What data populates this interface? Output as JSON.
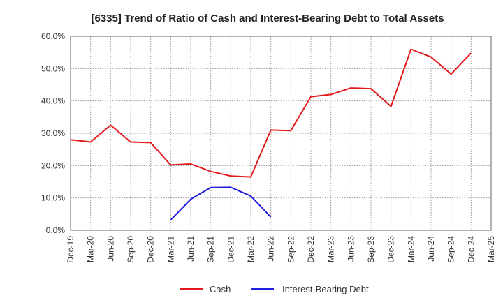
{
  "chart_data": {
    "type": "line",
    "title": "[6335]  Trend of Ratio of Cash and Interest-Bearing Debt to Total Assets",
    "xlabel": "",
    "ylabel": "",
    "ylim": [
      0,
      60
    ],
    "yticks": [
      0,
      10,
      20,
      30,
      40,
      50,
      60
    ],
    "ytick_labels": [
      "0.0%",
      "10.0%",
      "20.0%",
      "30.0%",
      "40.0%",
      "50.0%",
      "60.0%"
    ],
    "categories": [
      "Dec-19",
      "Mar-20",
      "Jun-20",
      "Sep-20",
      "Dec-20",
      "Mar-21",
      "Jun-21",
      "Sep-21",
      "Dec-21",
      "Mar-22",
      "Jun-22",
      "Sep-22",
      "Dec-22",
      "Mar-23",
      "Jun-23",
      "Sep-23",
      "Dec-23",
      "Mar-24",
      "Jun-24",
      "Sep-24",
      "Dec-24",
      "Mar-25"
    ],
    "grid": true,
    "legend_position": "bottom",
    "series": [
      {
        "name": "Cash",
        "color": "#e31a1c",
        "values": [
          28.0,
          27.3,
          32.5,
          27.3,
          27.1,
          20.2,
          20.5,
          18.2,
          16.8,
          16.5,
          31.0,
          30.8,
          41.3,
          42.0,
          44.0,
          43.8,
          38.3,
          56.0,
          53.6,
          48.3,
          54.8,
          null
        ]
      },
      {
        "name": "Interest-Bearing Debt",
        "color": "#1f1fdd",
        "values": [
          null,
          null,
          null,
          null,
          null,
          3.2,
          9.6,
          13.2,
          13.3,
          10.6,
          4.1,
          null,
          null,
          null,
          null,
          null,
          null,
          null,
          null,
          null,
          null,
          null
        ]
      }
    ]
  }
}
